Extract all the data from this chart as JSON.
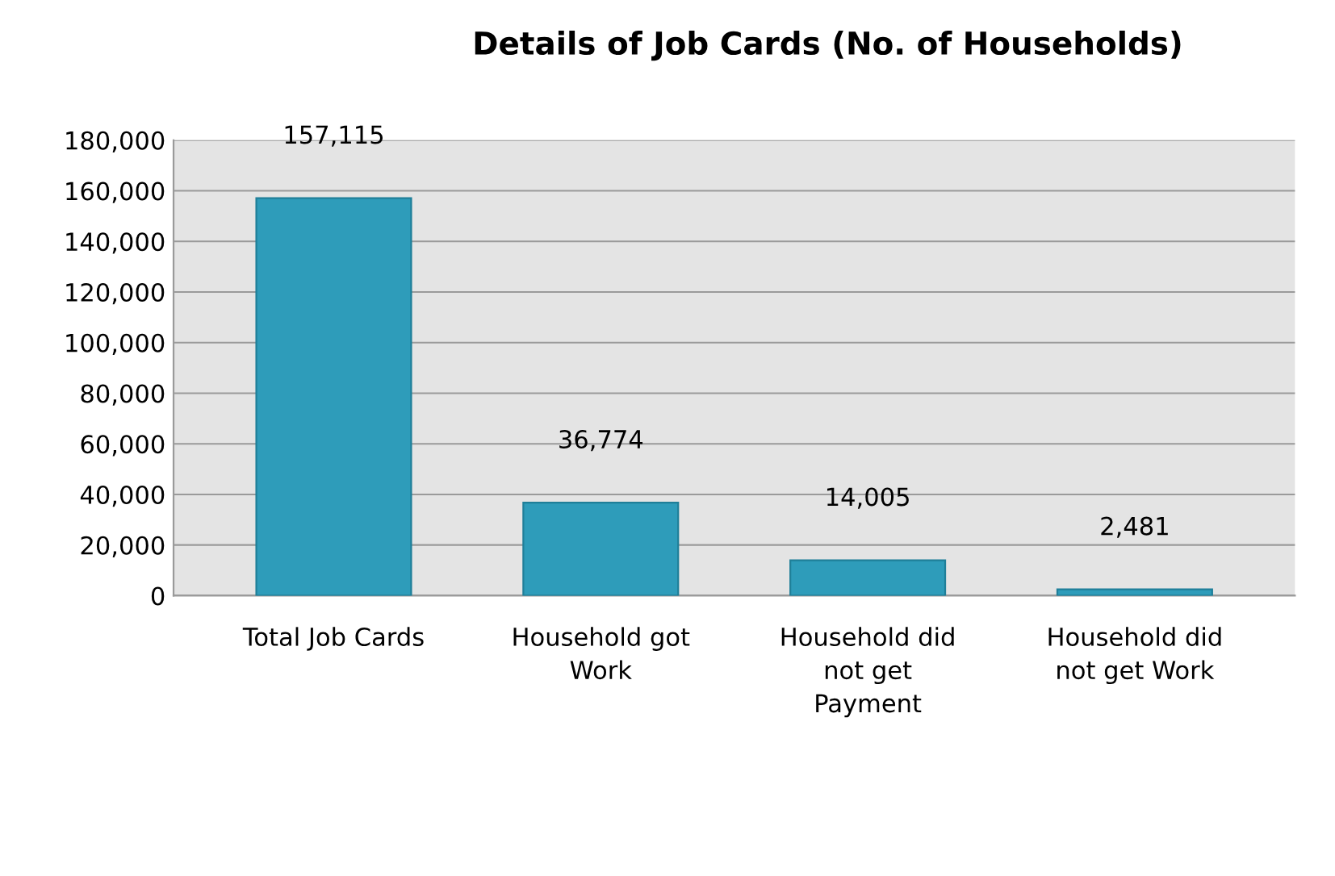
{
  "chart_data": {
    "type": "bar",
    "title": "Details of Job Cards (No. of Households)",
    "categories": [
      "Total Job Cards",
      "Household got\nWork",
      "Household did\nnot get\nPayment",
      "Household did\nnot get Work"
    ],
    "values": [
      157115,
      36774,
      14005,
      2481
    ],
    "color": "#2e9cba",
    "value_labels": [
      "157,115",
      "36,774",
      "14,005",
      "2,481"
    ],
    "ylim": [
      0,
      180000
    ],
    "yticks": [
      {
        "value": 0,
        "label": "0"
      },
      {
        "value": 20000,
        "label": "20,000"
      },
      {
        "value": 40000,
        "label": "40,000"
      },
      {
        "value": 60000,
        "label": "60,000"
      },
      {
        "value": 80000,
        "label": "80,000"
      },
      {
        "value": 100000,
        "label": "100,000"
      },
      {
        "value": 120000,
        "label": "120,000"
      },
      {
        "value": 140000,
        "label": "140,000"
      },
      {
        "value": 160000,
        "label": "160,000"
      },
      {
        "value": 180000,
        "label": "180,000"
      }
    ],
    "grid": "y",
    "legend": false
  }
}
